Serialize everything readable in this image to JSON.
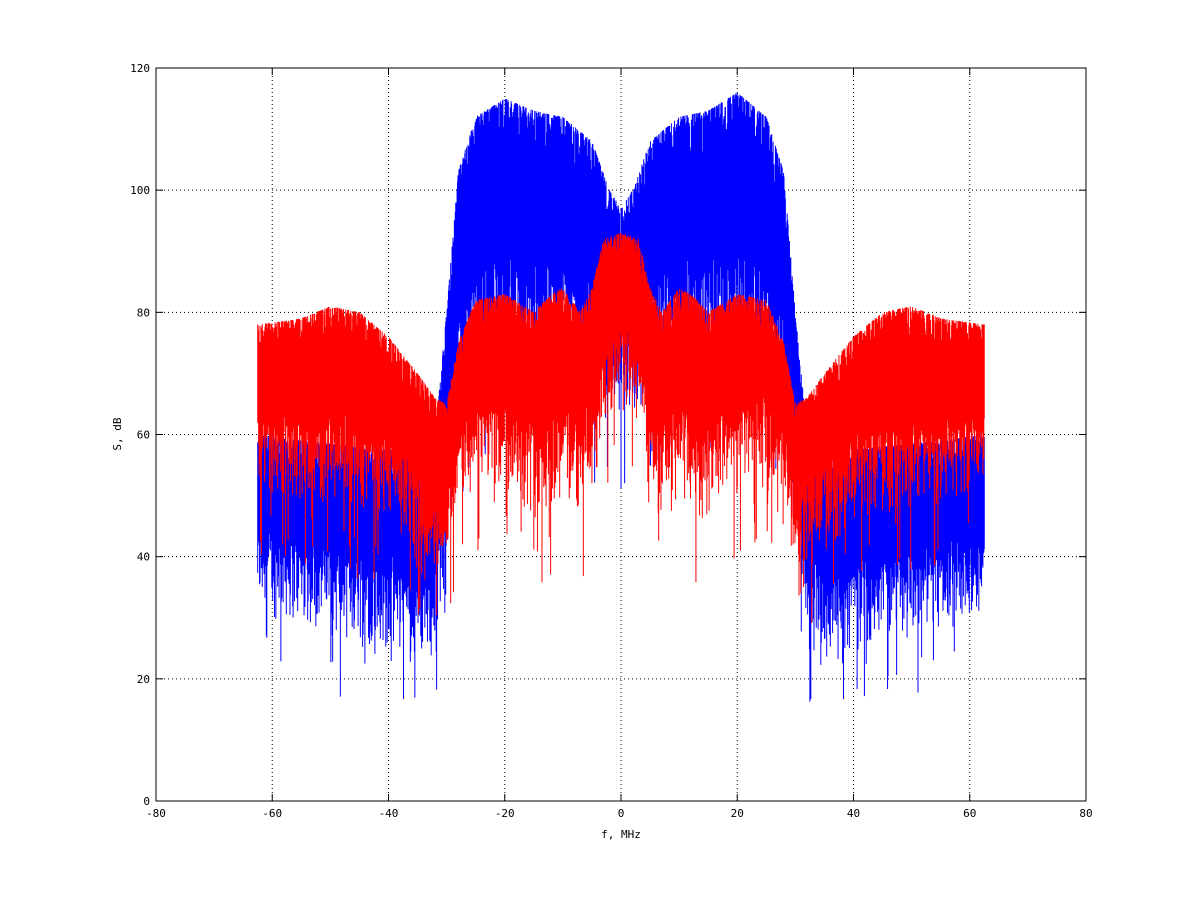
{
  "chart_data": {
    "type": "line",
    "title": "",
    "xlabel": "f, MHz",
    "ylabel": "S, dB",
    "xlim": [
      -80,
      80
    ],
    "ylim": [
      0,
      120
    ],
    "xticks": [
      -80,
      -60,
      -40,
      -20,
      0,
      20,
      40,
      60,
      80
    ],
    "yticks": [
      0,
      20,
      40,
      60,
      80,
      100,
      120
    ],
    "xtick_labels": [
      "-80",
      "-60",
      "-40",
      "-20",
      "0",
      "20",
      "40",
      "60",
      "80"
    ],
    "ytick_labels": [
      "0",
      "20",
      "40",
      "60",
      "80",
      "100",
      "120"
    ],
    "grid": true,
    "legend": "none",
    "x_range_of_data": [
      -62.5,
      62.5
    ],
    "series": [
      {
        "color": "#0000ff",
        "envelope": {
          "x": [
            -62.5,
            -55,
            -45,
            -35,
            -32,
            -30,
            -28,
            -25,
            -20,
            -15,
            -10,
            -5,
            -2,
            0,
            2,
            5,
            10,
            15,
            20,
            25,
            28,
            30,
            32,
            35,
            45,
            55,
            62.5
          ],
          "upper": [
            60,
            59,
            58,
            57,
            60,
            80,
            103,
            112,
            115,
            113,
            112,
            108,
            100,
            97,
            100,
            108,
            112,
            113,
            116,
            112,
            103,
            80,
            60,
            57,
            58,
            59,
            60
          ],
          "lower": [
            30,
            28,
            25,
            22,
            22,
            40,
            55,
            65,
            68,
            66,
            65,
            62,
            62,
            60,
            62,
            62,
            65,
            66,
            68,
            65,
            55,
            40,
            22,
            22,
            25,
            28,
            30
          ]
        }
      },
      {
        "color": "#ff0000",
        "envelope": {
          "x": [
            -62.5,
            -55,
            -50,
            -45,
            -40,
            -35,
            -32,
            -30,
            -28,
            -25,
            -20,
            -15,
            -12,
            -10,
            -7,
            -5,
            -3,
            0,
            3,
            5,
            7,
            10,
            12,
            15,
            20,
            25,
            28,
            30,
            32,
            35,
            40,
            45,
            50,
            55,
            62.5
          ],
          "upper": [
            78,
            79,
            81,
            80,
            76,
            70,
            66,
            65,
            75,
            82,
            83,
            80,
            83,
            84,
            80,
            84,
            92,
            93,
            92,
            84,
            80,
            84,
            83,
            80,
            83,
            82,
            75,
            65,
            66,
            70,
            76,
            80,
            81,
            79,
            78
          ],
          "lower": [
            50,
            48,
            47,
            46,
            44,
            40,
            38,
            38,
            48,
            50,
            50,
            46,
            45,
            48,
            46,
            48,
            60,
            63,
            60,
            48,
            46,
            48,
            45,
            46,
            50,
            50,
            48,
            38,
            38,
            40,
            44,
            46,
            47,
            48,
            50
          ]
        }
      }
    ]
  }
}
